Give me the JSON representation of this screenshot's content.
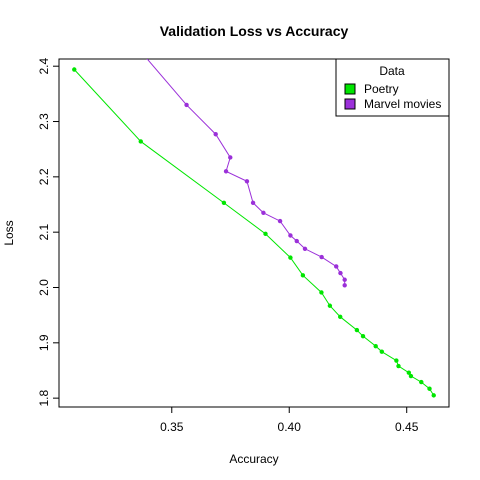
{
  "chart_data": {
    "type": "line",
    "title": "Validation Loss vs Accuracy",
    "xlabel": "Accuracy",
    "ylabel": "Loss",
    "xlim": [
      0.302,
      0.468
    ],
    "ylim": [
      1.784,
      2.413
    ],
    "x_ticks": [
      0.35,
      0.4,
      0.45
    ],
    "x_tick_labels": [
      "0.35",
      "0.40",
      "0.45"
    ],
    "y_ticks": [
      1.8,
      1.9,
      2.0,
      2.1,
      2.2,
      2.3,
      2.4
    ],
    "y_tick_labels": [
      "1.8",
      "1.9",
      "2.0",
      "2.1",
      "2.2",
      "2.3",
      "2.4"
    ],
    "grid": false,
    "legend": {
      "title": "Data",
      "position": "top-right"
    },
    "series": [
      {
        "name": "Poetry",
        "color": "#00e600",
        "points": [
          [
            0.3085,
            2.394
          ],
          [
            0.3368,
            2.264
          ],
          [
            0.3722,
            2.153
          ],
          [
            0.3899,
            2.097
          ],
          [
            0.4005,
            2.054
          ],
          [
            0.4058,
            2.022
          ],
          [
            0.4137,
            1.991
          ],
          [
            0.4173,
            1.967
          ],
          [
            0.4217,
            1.947
          ],
          [
            0.4288,
            1.923
          ],
          [
            0.4314,
            1.912
          ],
          [
            0.4368,
            1.894
          ],
          [
            0.4394,
            1.884
          ],
          [
            0.4456,
            1.868
          ],
          [
            0.4465,
            1.858
          ],
          [
            0.4509,
            1.846
          ],
          [
            0.4518,
            1.84
          ],
          [
            0.4562,
            1.829
          ],
          [
            0.4597,
            1.817
          ],
          [
            0.4615,
            1.805
          ]
        ]
      },
      {
        "name": "Marvel movies",
        "color": "#9b30d9",
        "points": [
          [
            0.3341,
            2.44
          ],
          [
            0.3563,
            2.33
          ],
          [
            0.3687,
            2.277
          ],
          [
            0.3749,
            2.235
          ],
          [
            0.3731,
            2.21
          ],
          [
            0.382,
            2.192
          ],
          [
            0.3846,
            2.153
          ],
          [
            0.389,
            2.135
          ],
          [
            0.3961,
            2.12
          ],
          [
            0.4005,
            2.094
          ],
          [
            0.4032,
            2.084
          ],
          [
            0.4067,
            2.07
          ],
          [
            0.4138,
            2.055
          ],
          [
            0.42,
            2.038
          ],
          [
            0.4218,
            2.026
          ],
          [
            0.4236,
            2.014
          ],
          [
            0.4236,
            2.004
          ]
        ]
      }
    ]
  }
}
